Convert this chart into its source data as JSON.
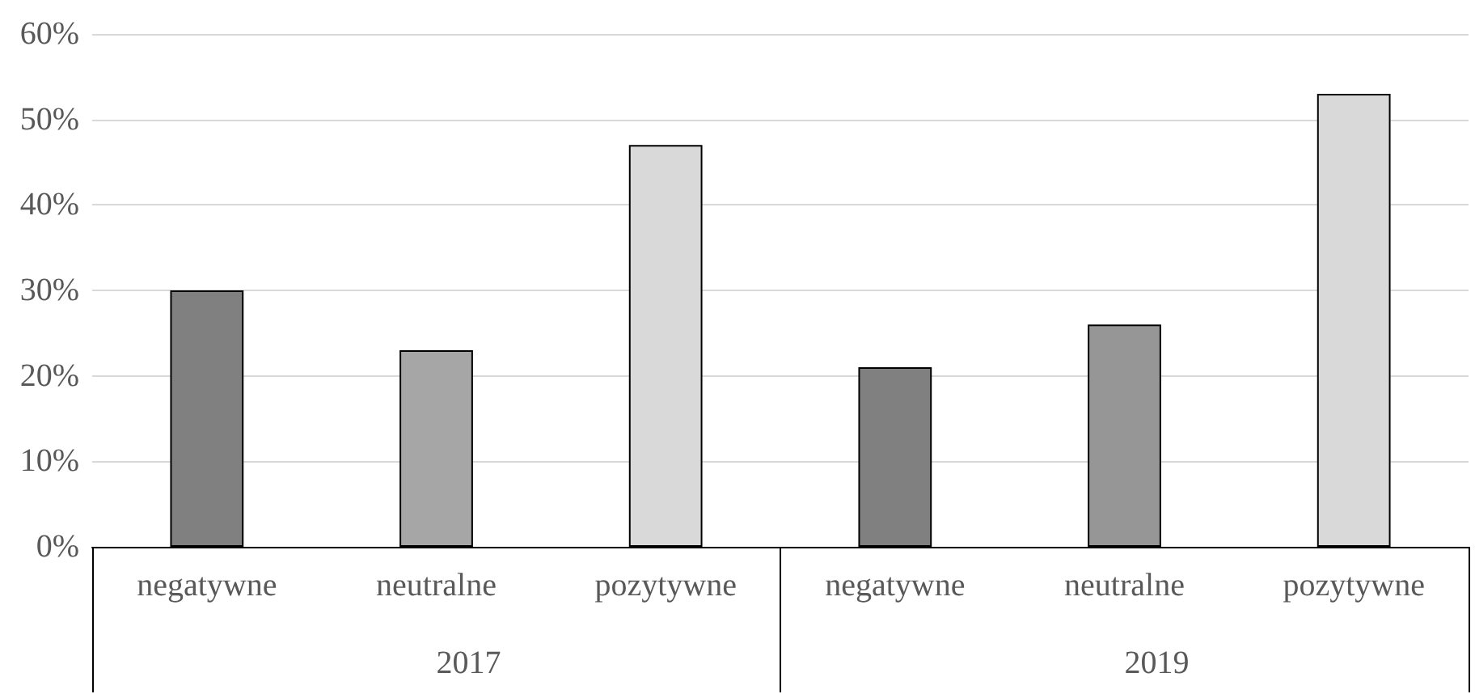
{
  "chart_data": {
    "type": "bar",
    "categories": [
      "negatywne",
      "neutralne",
      "pozytywne",
      "negatywne",
      "neutralne",
      "pozytywne"
    ],
    "values": [
      30,
      23,
      47,
      21,
      26,
      53
    ],
    "colors": [
      "#808080",
      "#a6a6a6",
      "#d9d9d9",
      "#808080",
      "#969696",
      "#d9d9d9"
    ],
    "ylim": [
      0,
      60
    ],
    "yticks": [
      {
        "value": 0,
        "label": "0%"
      },
      {
        "value": 10,
        "label": "10%"
      },
      {
        "value": 20,
        "label": "20%"
      },
      {
        "value": 30,
        "label": "30%"
      },
      {
        "value": 40,
        "label": "40%"
      },
      {
        "value": 50,
        "label": "50%"
      },
      {
        "value": 60,
        "label": "60%"
      }
    ],
    "annotations": [
      "2017",
      "2019"
    ],
    "grid": "y"
  }
}
